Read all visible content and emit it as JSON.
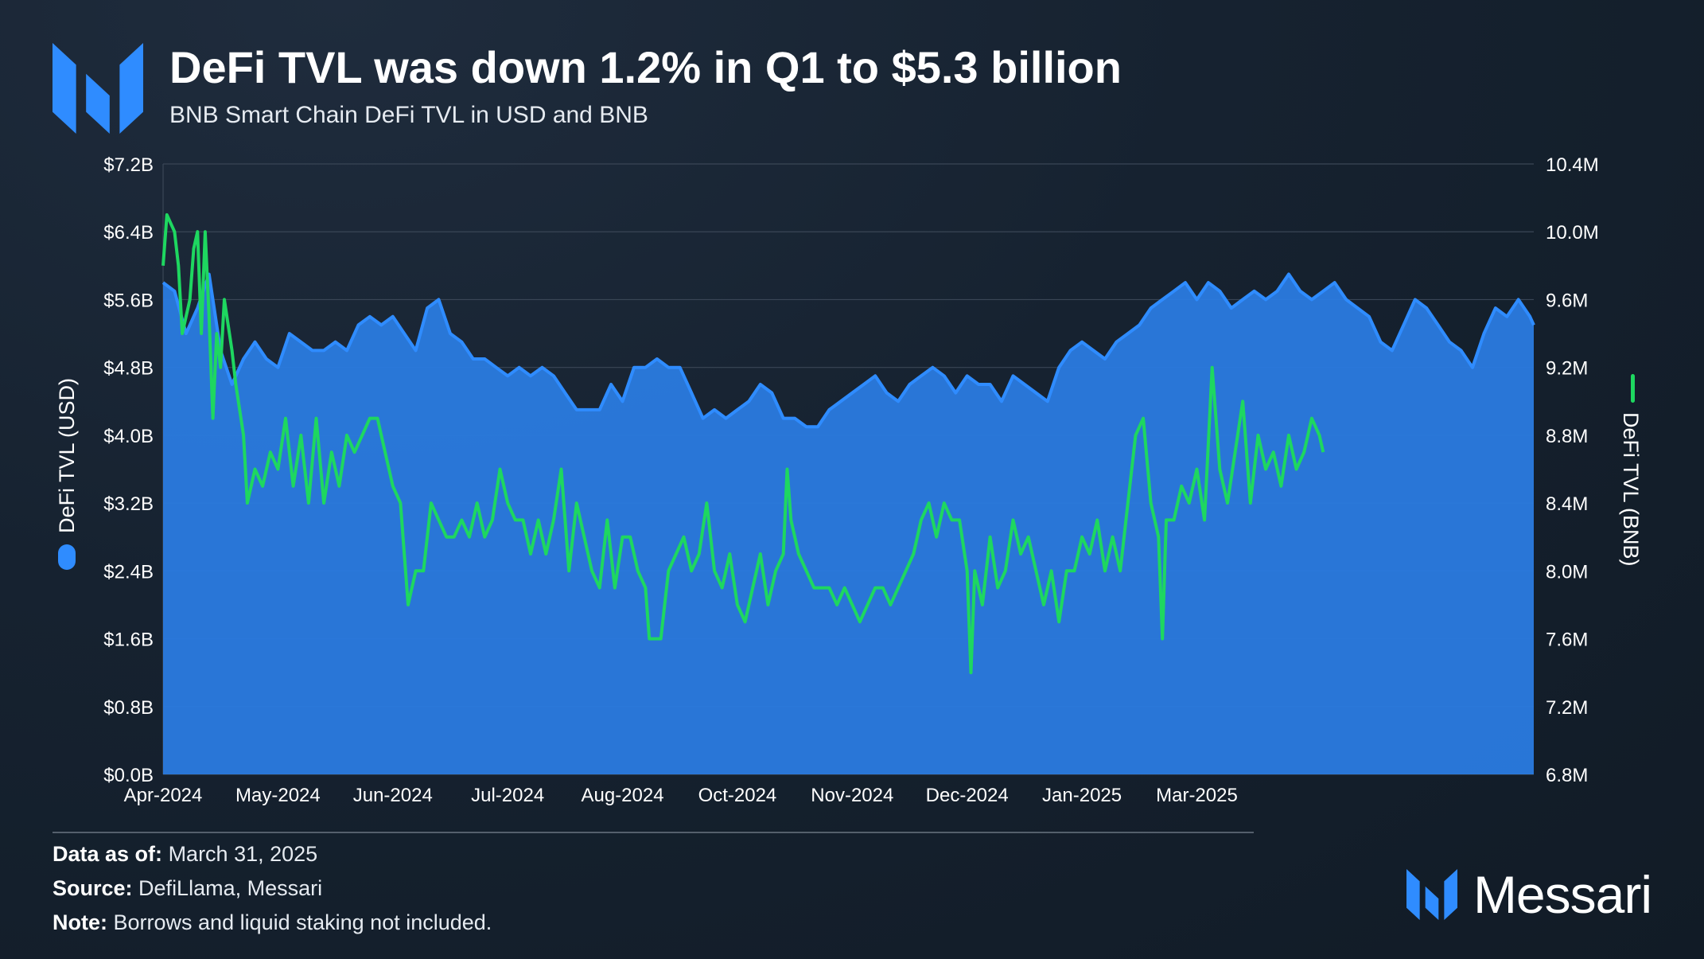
{
  "header": {
    "title": "DeFi TVL was down 1.2% in Q1 to $5.3 billion",
    "subtitle": "BNB Smart Chain DeFi TVL in USD and BNB"
  },
  "footer": {
    "data_as_of_label": "Data as of:",
    "data_as_of_value": "March 31, 2025",
    "source_label": "Source:",
    "source_value": "DefiLlama, Messari",
    "note_label": "Note:",
    "note_value": "Borrows and liquid staking not included.",
    "brand": "Messari"
  },
  "colors": {
    "usd_fill": "#2a7be0",
    "usd_line": "#2f8cff",
    "bnb_line": "#1ed760",
    "grid": "#3a4656",
    "text": "#ffffff"
  },
  "chart_data": {
    "type": "area",
    "title": "DeFi TVL was down 1.2% in Q1 to $5.3 billion",
    "subtitle": "BNB Smart Chain DeFi TVL in USD and BNB",
    "x_tick_labels": [
      "Apr-2024",
      "May-2024",
      "Jun-2024",
      "Jul-2024",
      "Aug-2024",
      "Oct-2024",
      "Nov-2024",
      "Dec-2024",
      "Jan-2025",
      "Mar-2025"
    ],
    "x_tick_positions": [
      0,
      30,
      60,
      90,
      120,
      150,
      180,
      210,
      240,
      270
    ],
    "y_left": {
      "label": "DeFi TVL (USD)",
      "ticks": [
        "$0.0B",
        "$0.8B",
        "$1.6B",
        "$2.4B",
        "$3.2B",
        "$4.0B",
        "$4.8B",
        "$5.6B",
        "$6.4B",
        "$7.2B"
      ],
      "range": [
        0,
        7.2
      ],
      "unit": "billion USD"
    },
    "y_right": {
      "label": "DeFi TVL (BNB)",
      "ticks": [
        "6.8M",
        "7.2M",
        "7.6M",
        "8.0M",
        "8.4M",
        "8.8M",
        "9.2M",
        "9.6M",
        "10.0M",
        "10.4M"
      ],
      "range": [
        6.8,
        10.4
      ],
      "unit": "million BNB"
    },
    "legend": "vertical along both y-axes",
    "series": [
      {
        "name": "DeFi TVL (USD)",
        "axis": "left",
        "style": "area",
        "points": [
          [
            0,
            5.8
          ],
          [
            3,
            5.7
          ],
          [
            6,
            5.2
          ],
          [
            9,
            5.5
          ],
          [
            12,
            5.9
          ],
          [
            15,
            5.0
          ],
          [
            18,
            4.6
          ],
          [
            21,
            4.9
          ],
          [
            24,
            5.1
          ],
          [
            27,
            4.9
          ],
          [
            30,
            4.8
          ],
          [
            33,
            5.2
          ],
          [
            36,
            5.1
          ],
          [
            39,
            5.0
          ],
          [
            42,
            5.0
          ],
          [
            45,
            5.1
          ],
          [
            48,
            5.0
          ],
          [
            51,
            5.3
          ],
          [
            54,
            5.4
          ],
          [
            57,
            5.3
          ],
          [
            60,
            5.4
          ],
          [
            63,
            5.2
          ],
          [
            66,
            5.0
          ],
          [
            69,
            5.5
          ],
          [
            72,
            5.6
          ],
          [
            75,
            5.2
          ],
          [
            78,
            5.1
          ],
          [
            81,
            4.9
          ],
          [
            84,
            4.9
          ],
          [
            87,
            4.8
          ],
          [
            90,
            4.7
          ],
          [
            93,
            4.8
          ],
          [
            96,
            4.7
          ],
          [
            99,
            4.8
          ],
          [
            102,
            4.7
          ],
          [
            105,
            4.5
          ],
          [
            108,
            4.3
          ],
          [
            111,
            4.3
          ],
          [
            114,
            4.3
          ],
          [
            117,
            4.6
          ],
          [
            120,
            4.4
          ],
          [
            123,
            4.8
          ],
          [
            126,
            4.8
          ],
          [
            129,
            4.9
          ],
          [
            132,
            4.8
          ],
          [
            135,
            4.8
          ],
          [
            138,
            4.5
          ],
          [
            141,
            4.2
          ],
          [
            144,
            4.3
          ],
          [
            147,
            4.2
          ],
          [
            150,
            4.3
          ],
          [
            153,
            4.4
          ],
          [
            156,
            4.6
          ],
          [
            159,
            4.5
          ],
          [
            162,
            4.2
          ],
          [
            165,
            4.2
          ],
          [
            168,
            4.1
          ],
          [
            171,
            4.1
          ],
          [
            174,
            4.3
          ],
          [
            177,
            4.4
          ],
          [
            180,
            4.5
          ],
          [
            183,
            4.6
          ],
          [
            186,
            4.7
          ],
          [
            189,
            4.5
          ],
          [
            192,
            4.4
          ],
          [
            195,
            4.6
          ],
          [
            198,
            4.7
          ],
          [
            201,
            4.8
          ],
          [
            204,
            4.7
          ],
          [
            207,
            4.5
          ],
          [
            210,
            4.7
          ],
          [
            213,
            4.6
          ],
          [
            216,
            4.6
          ],
          [
            219,
            4.4
          ],
          [
            222,
            4.7
          ],
          [
            225,
            4.6
          ],
          [
            228,
            4.5
          ],
          [
            231,
            4.4
          ],
          [
            234,
            4.8
          ],
          [
            237,
            5.0
          ],
          [
            240,
            5.1
          ],
          [
            243,
            5.0
          ],
          [
            246,
            4.9
          ],
          [
            249,
            5.1
          ],
          [
            252,
            5.2
          ],
          [
            255,
            5.3
          ],
          [
            258,
            5.5
          ],
          [
            261,
            5.6
          ],
          [
            264,
            5.7
          ],
          [
            267,
            5.8
          ],
          [
            270,
            5.6
          ],
          [
            273,
            5.8
          ],
          [
            276,
            5.7
          ],
          [
            279,
            5.5
          ],
          [
            282,
            5.6
          ],
          [
            285,
            5.7
          ],
          [
            288,
            5.6
          ],
          [
            291,
            5.7
          ],
          [
            294,
            5.9
          ],
          [
            297,
            5.7
          ],
          [
            300,
            5.6
          ],
          [
            303,
            5.7
          ],
          [
            306,
            5.8
          ],
          [
            309,
            5.6
          ],
          [
            312,
            5.5
          ],
          [
            315,
            5.4
          ],
          [
            318,
            5.1
          ],
          [
            321,
            5.0
          ],
          [
            324,
            5.3
          ],
          [
            327,
            5.6
          ],
          [
            330,
            5.5
          ],
          [
            333,
            5.3
          ],
          [
            336,
            5.1
          ],
          [
            339,
            5.0
          ],
          [
            342,
            4.8
          ],
          [
            345,
            5.2
          ],
          [
            348,
            5.5
          ],
          [
            351,
            5.4
          ],
          [
            354,
            5.6
          ],
          [
            357,
            5.4
          ],
          [
            358,
            5.3
          ]
        ]
      },
      {
        "name": "DeFi TVL (BNB)",
        "axis": "right",
        "style": "line",
        "points": [
          [
            0,
            9.8
          ],
          [
            1,
            10.1
          ],
          [
            3,
            10.0
          ],
          [
            4,
            9.8
          ],
          [
            5,
            9.4
          ],
          [
            7,
            9.6
          ],
          [
            8,
            9.9
          ],
          [
            9,
            10.0
          ],
          [
            10,
            9.4
          ],
          [
            11,
            10.0
          ],
          [
            12,
            9.5
          ],
          [
            13,
            8.9
          ],
          [
            14,
            9.4
          ],
          [
            15,
            9.2
          ],
          [
            16,
            9.6
          ],
          [
            18,
            9.3
          ],
          [
            19,
            9.1
          ],
          [
            21,
            8.8
          ],
          [
            22,
            8.4
          ],
          [
            24,
            8.6
          ],
          [
            26,
            8.5
          ],
          [
            28,
            8.7
          ],
          [
            30,
            8.6
          ],
          [
            32,
            8.9
          ],
          [
            34,
            8.5
          ],
          [
            36,
            8.8
          ],
          [
            38,
            8.4
          ],
          [
            40,
            8.9
          ],
          [
            42,
            8.4
          ],
          [
            44,
            8.7
          ],
          [
            46,
            8.5
          ],
          [
            48,
            8.8
          ],
          [
            50,
            8.7
          ],
          [
            52,
            8.8
          ],
          [
            54,
            8.9
          ],
          [
            56,
            8.9
          ],
          [
            58,
            8.7
          ],
          [
            60,
            8.5
          ],
          [
            62,
            8.4
          ],
          [
            64,
            7.8
          ],
          [
            66,
            8.0
          ],
          [
            68,
            8.0
          ],
          [
            70,
            8.4
          ],
          [
            72,
            8.3
          ],
          [
            74,
            8.2
          ],
          [
            76,
            8.2
          ],
          [
            78,
            8.3
          ],
          [
            80,
            8.2
          ],
          [
            82,
            8.4
          ],
          [
            84,
            8.2
          ],
          [
            86,
            8.3
          ],
          [
            88,
            8.6
          ],
          [
            90,
            8.4
          ],
          [
            92,
            8.3
          ],
          [
            94,
            8.3
          ],
          [
            96,
            8.1
          ],
          [
            98,
            8.3
          ],
          [
            100,
            8.1
          ],
          [
            102,
            8.3
          ],
          [
            104,
            8.6
          ],
          [
            106,
            8.0
          ],
          [
            108,
            8.4
          ],
          [
            110,
            8.2
          ],
          [
            112,
            8.0
          ],
          [
            114,
            7.9
          ],
          [
            116,
            8.3
          ],
          [
            118,
            7.9
          ],
          [
            120,
            8.2
          ],
          [
            122,
            8.2
          ],
          [
            124,
            8.0
          ],
          [
            126,
            7.9
          ],
          [
            127,
            7.6
          ],
          [
            128,
            7.6
          ],
          [
            130,
            7.6
          ],
          [
            132,
            8.0
          ],
          [
            134,
            8.1
          ],
          [
            136,
            8.2
          ],
          [
            138,
            8.0
          ],
          [
            140,
            8.1
          ],
          [
            142,
            8.4
          ],
          [
            144,
            8.0
          ],
          [
            146,
            7.9
          ],
          [
            148,
            8.1
          ],
          [
            150,
            7.8
          ],
          [
            152,
            7.7
          ],
          [
            154,
            7.9
          ],
          [
            156,
            8.1
          ],
          [
            158,
            7.8
          ],
          [
            160,
            8.0
          ],
          [
            162,
            8.1
          ],
          [
            163,
            8.6
          ],
          [
            164,
            8.3
          ],
          [
            166,
            8.1
          ],
          [
            168,
            8.0
          ],
          [
            170,
            7.9
          ],
          [
            172,
            7.9
          ],
          [
            174,
            7.9
          ],
          [
            176,
            7.8
          ],
          [
            178,
            7.9
          ],
          [
            180,
            7.8
          ],
          [
            182,
            7.7
          ],
          [
            184,
            7.8
          ],
          [
            186,
            7.9
          ],
          [
            188,
            7.9
          ],
          [
            190,
            7.8
          ],
          [
            192,
            7.9
          ],
          [
            194,
            8.0
          ],
          [
            196,
            8.1
          ],
          [
            198,
            8.3
          ],
          [
            200,
            8.4
          ],
          [
            202,
            8.2
          ],
          [
            204,
            8.4
          ],
          [
            206,
            8.3
          ],
          [
            208,
            8.3
          ],
          [
            210,
            8.0
          ],
          [
            211,
            7.4
          ],
          [
            212,
            8.0
          ],
          [
            214,
            7.8
          ],
          [
            216,
            8.2
          ],
          [
            218,
            7.9
          ],
          [
            220,
            8.0
          ],
          [
            222,
            8.3
          ],
          [
            224,
            8.1
          ],
          [
            226,
            8.2
          ],
          [
            228,
            8.0
          ],
          [
            230,
            7.8
          ],
          [
            232,
            8.0
          ],
          [
            234,
            7.7
          ],
          [
            236,
            8.0
          ],
          [
            238,
            8.0
          ],
          [
            240,
            8.2
          ],
          [
            242,
            8.1
          ],
          [
            244,
            8.3
          ],
          [
            246,
            8.0
          ],
          [
            248,
            8.2
          ],
          [
            250,
            8.0
          ],
          [
            252,
            8.4
          ],
          [
            254,
            8.8
          ],
          [
            256,
            8.9
          ],
          [
            258,
            8.4
          ],
          [
            260,
            8.2
          ],
          [
            261,
            7.6
          ],
          [
            262,
            8.3
          ],
          [
            264,
            8.3
          ],
          [
            266,
            8.5
          ],
          [
            268,
            8.4
          ],
          [
            270,
            8.6
          ],
          [
            272,
            8.3
          ],
          [
            274,
            9.2
          ],
          [
            276,
            8.6
          ],
          [
            278,
            8.4
          ],
          [
            280,
            8.7
          ],
          [
            282,
            9.0
          ],
          [
            284,
            8.4
          ],
          [
            286,
            8.8
          ],
          [
            288,
            8.6
          ],
          [
            290,
            8.7
          ],
          [
            292,
            8.5
          ],
          [
            294,
            8.8
          ],
          [
            296,
            8.6
          ],
          [
            298,
            8.7
          ],
          [
            300,
            8.9
          ],
          [
            302,
            8.8
          ],
          [
            303,
            8.7
          ]
        ]
      }
    ]
  }
}
